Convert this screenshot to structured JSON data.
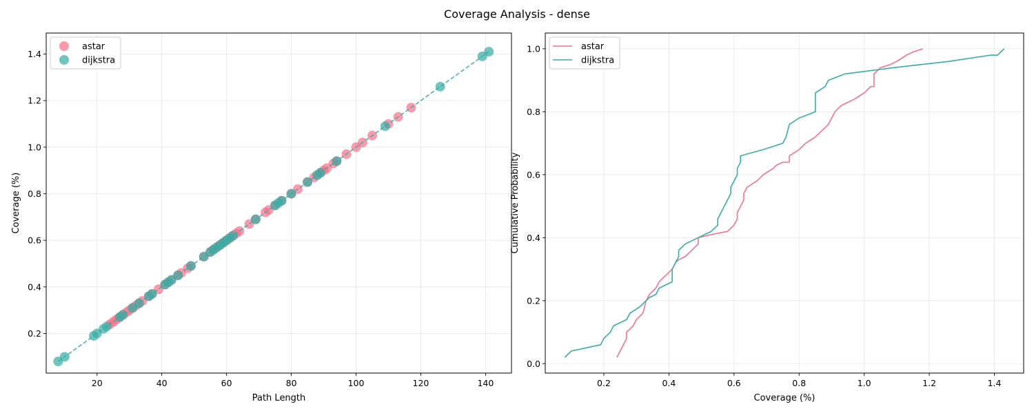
{
  "figure": {
    "title": "Coverage Analysis - dense"
  },
  "colors": {
    "astar": "#f77189",
    "dijkstra": "#36ada4"
  },
  "chart_data": [
    {
      "type": "scatter",
      "title": "",
      "xlabel": "Path Length",
      "ylabel": "Coverage (%)",
      "xlim": [
        4.3,
        148.0
      ],
      "ylim": [
        0.03,
        1.49
      ],
      "xticks": [
        20,
        40,
        60,
        80,
        100,
        120,
        140
      ],
      "yticks": [
        0.2,
        0.4,
        0.6,
        0.8,
        1.0,
        1.2,
        1.4
      ],
      "xtick_labels": [
        "20",
        "40",
        "60",
        "80",
        "100",
        "120",
        "140"
      ],
      "ytick_labels": [
        "0.2",
        "0.4",
        "0.6",
        "0.8",
        "1.0",
        "1.2",
        "1.4"
      ],
      "grid": true,
      "legend": "upper left",
      "series": [
        {
          "name": "astar",
          "color": "#f77189",
          "x": [
            24,
            25,
            26,
            27,
            28,
            29,
            30,
            31,
            32,
            33,
            34,
            36,
            37,
            39,
            41,
            42,
            43,
            45,
            46,
            48,
            49,
            53,
            55,
            56,
            57,
            58,
            59,
            60,
            61,
            62,
            63,
            64,
            67,
            69,
            72,
            73,
            75,
            77,
            80,
            82,
            85,
            87,
            88,
            89,
            90,
            91,
            93,
            94,
            97,
            100,
            102,
            105,
            110,
            113,
            117
          ],
          "y": [
            0.24,
            0.25,
            0.26,
            0.27,
            0.28,
            0.29,
            0.3,
            0.31,
            0.32,
            0.33,
            0.34,
            0.36,
            0.37,
            0.39,
            0.41,
            0.42,
            0.43,
            0.45,
            0.46,
            0.48,
            0.49,
            0.53,
            0.55,
            0.56,
            0.57,
            0.58,
            0.59,
            0.6,
            0.61,
            0.62,
            0.63,
            0.64,
            0.67,
            0.69,
            0.72,
            0.73,
            0.75,
            0.77,
            0.8,
            0.82,
            0.85,
            0.87,
            0.88,
            0.89,
            0.9,
            0.91,
            0.93,
            0.94,
            0.97,
            1.0,
            1.02,
            1.05,
            1.1,
            1.13,
            1.17
          ]
        },
        {
          "name": "dijkstra",
          "color": "#36ada4",
          "x": [
            8,
            10,
            19,
            20,
            22,
            23,
            27,
            28,
            31,
            33,
            36,
            37,
            41,
            42,
            43,
            45,
            49,
            53,
            55,
            56,
            57,
            58,
            59,
            60,
            61,
            62,
            69,
            75,
            76,
            77,
            80,
            85,
            88,
            89,
            94,
            109,
            126,
            139,
            141
          ],
          "y": [
            0.08,
            0.1,
            0.19,
            0.2,
            0.22,
            0.23,
            0.27,
            0.28,
            0.31,
            0.33,
            0.36,
            0.37,
            0.41,
            0.42,
            0.43,
            0.45,
            0.49,
            0.53,
            0.55,
            0.56,
            0.57,
            0.58,
            0.59,
            0.6,
            0.61,
            0.62,
            0.69,
            0.75,
            0.76,
            0.77,
            0.8,
            0.85,
            0.88,
            0.89,
            0.94,
            1.09,
            1.26,
            1.39,
            1.41
          ]
        }
      ],
      "trend_line": {
        "x": [
          8,
          141
        ],
        "y": [
          0.08,
          1.41
        ]
      }
    },
    {
      "type": "line",
      "title": "",
      "xlabel": "Coverage (%)",
      "ylabel": "Cumulative Probability",
      "xlim": [
        0.02,
        1.49
      ],
      "ylim": [
        -0.03,
        1.05
      ],
      "xticks": [
        0.2,
        0.4,
        0.6,
        0.8,
        1.0,
        1.2,
        1.4
      ],
      "yticks": [
        0.0,
        0.2,
        0.4,
        0.6,
        0.8,
        1.0
      ],
      "xtick_labels": [
        "0.2",
        "0.4",
        "0.6",
        "0.8",
        "1.0",
        "1.2",
        "1.4"
      ],
      "ytick_labels": [
        "0.0",
        "0.2",
        "0.4",
        "0.6",
        "0.8",
        "1.0"
      ],
      "grid": true,
      "legend": "upper left",
      "series": [
        {
          "name": "astar",
          "color": "#f77189",
          "x": [
            0.24,
            0.27,
            0.27,
            0.29,
            0.3,
            0.32,
            0.33,
            0.34,
            0.36,
            0.37,
            0.39,
            0.41,
            0.42,
            0.43,
            0.45,
            0.46,
            0.48,
            0.49,
            0.49,
            0.53,
            0.58,
            0.6,
            0.61,
            0.61,
            0.62,
            0.63,
            0.63,
            0.64,
            0.67,
            0.69,
            0.72,
            0.73,
            0.75,
            0.77,
            0.77,
            0.8,
            0.82,
            0.85,
            0.87,
            0.89,
            0.9,
            0.91,
            0.93,
            0.95,
            0.97,
            1.0,
            1.02,
            1.03,
            1.03,
            1.05,
            1.08,
            1.1,
            1.13,
            1.15,
            1.18
          ],
          "y": [
            0.02,
            0.08,
            0.1,
            0.12,
            0.14,
            0.16,
            0.2,
            0.22,
            0.24,
            0.26,
            0.28,
            0.3,
            0.32,
            0.33,
            0.34,
            0.35,
            0.37,
            0.38,
            0.4,
            0.41,
            0.42,
            0.44,
            0.46,
            0.48,
            0.5,
            0.52,
            0.54,
            0.56,
            0.58,
            0.6,
            0.62,
            0.63,
            0.64,
            0.64,
            0.66,
            0.68,
            0.7,
            0.72,
            0.74,
            0.76,
            0.78,
            0.8,
            0.82,
            0.83,
            0.84,
            0.86,
            0.88,
            0.88,
            0.92,
            0.94,
            0.95,
            0.96,
            0.98,
            0.99,
            1.0
          ]
        },
        {
          "name": "dijkstra",
          "color": "#36ada4",
          "x": [
            0.08,
            0.1,
            0.19,
            0.2,
            0.22,
            0.23,
            0.27,
            0.28,
            0.31,
            0.33,
            0.34,
            0.36,
            0.37,
            0.41,
            0.41,
            0.42,
            0.43,
            0.43,
            0.45,
            0.49,
            0.53,
            0.55,
            0.55,
            0.56,
            0.57,
            0.58,
            0.59,
            0.59,
            0.6,
            0.61,
            0.61,
            0.62,
            0.62,
            0.69,
            0.75,
            0.76,
            0.77,
            0.8,
            0.85,
            0.85,
            0.88,
            0.89,
            0.94,
            1.09,
            1.26,
            1.39,
            1.41,
            1.43
          ],
          "y": [
            0.02,
            0.04,
            0.06,
            0.08,
            0.1,
            0.12,
            0.14,
            0.16,
            0.18,
            0.2,
            0.21,
            0.22,
            0.24,
            0.26,
            0.3,
            0.32,
            0.34,
            0.36,
            0.38,
            0.4,
            0.42,
            0.44,
            0.46,
            0.48,
            0.5,
            0.52,
            0.54,
            0.56,
            0.58,
            0.6,
            0.62,
            0.64,
            0.66,
            0.68,
            0.7,
            0.72,
            0.76,
            0.78,
            0.8,
            0.86,
            0.88,
            0.9,
            0.92,
            0.94,
            0.96,
            0.98,
            0.98,
            1.0
          ]
        }
      ]
    }
  ]
}
